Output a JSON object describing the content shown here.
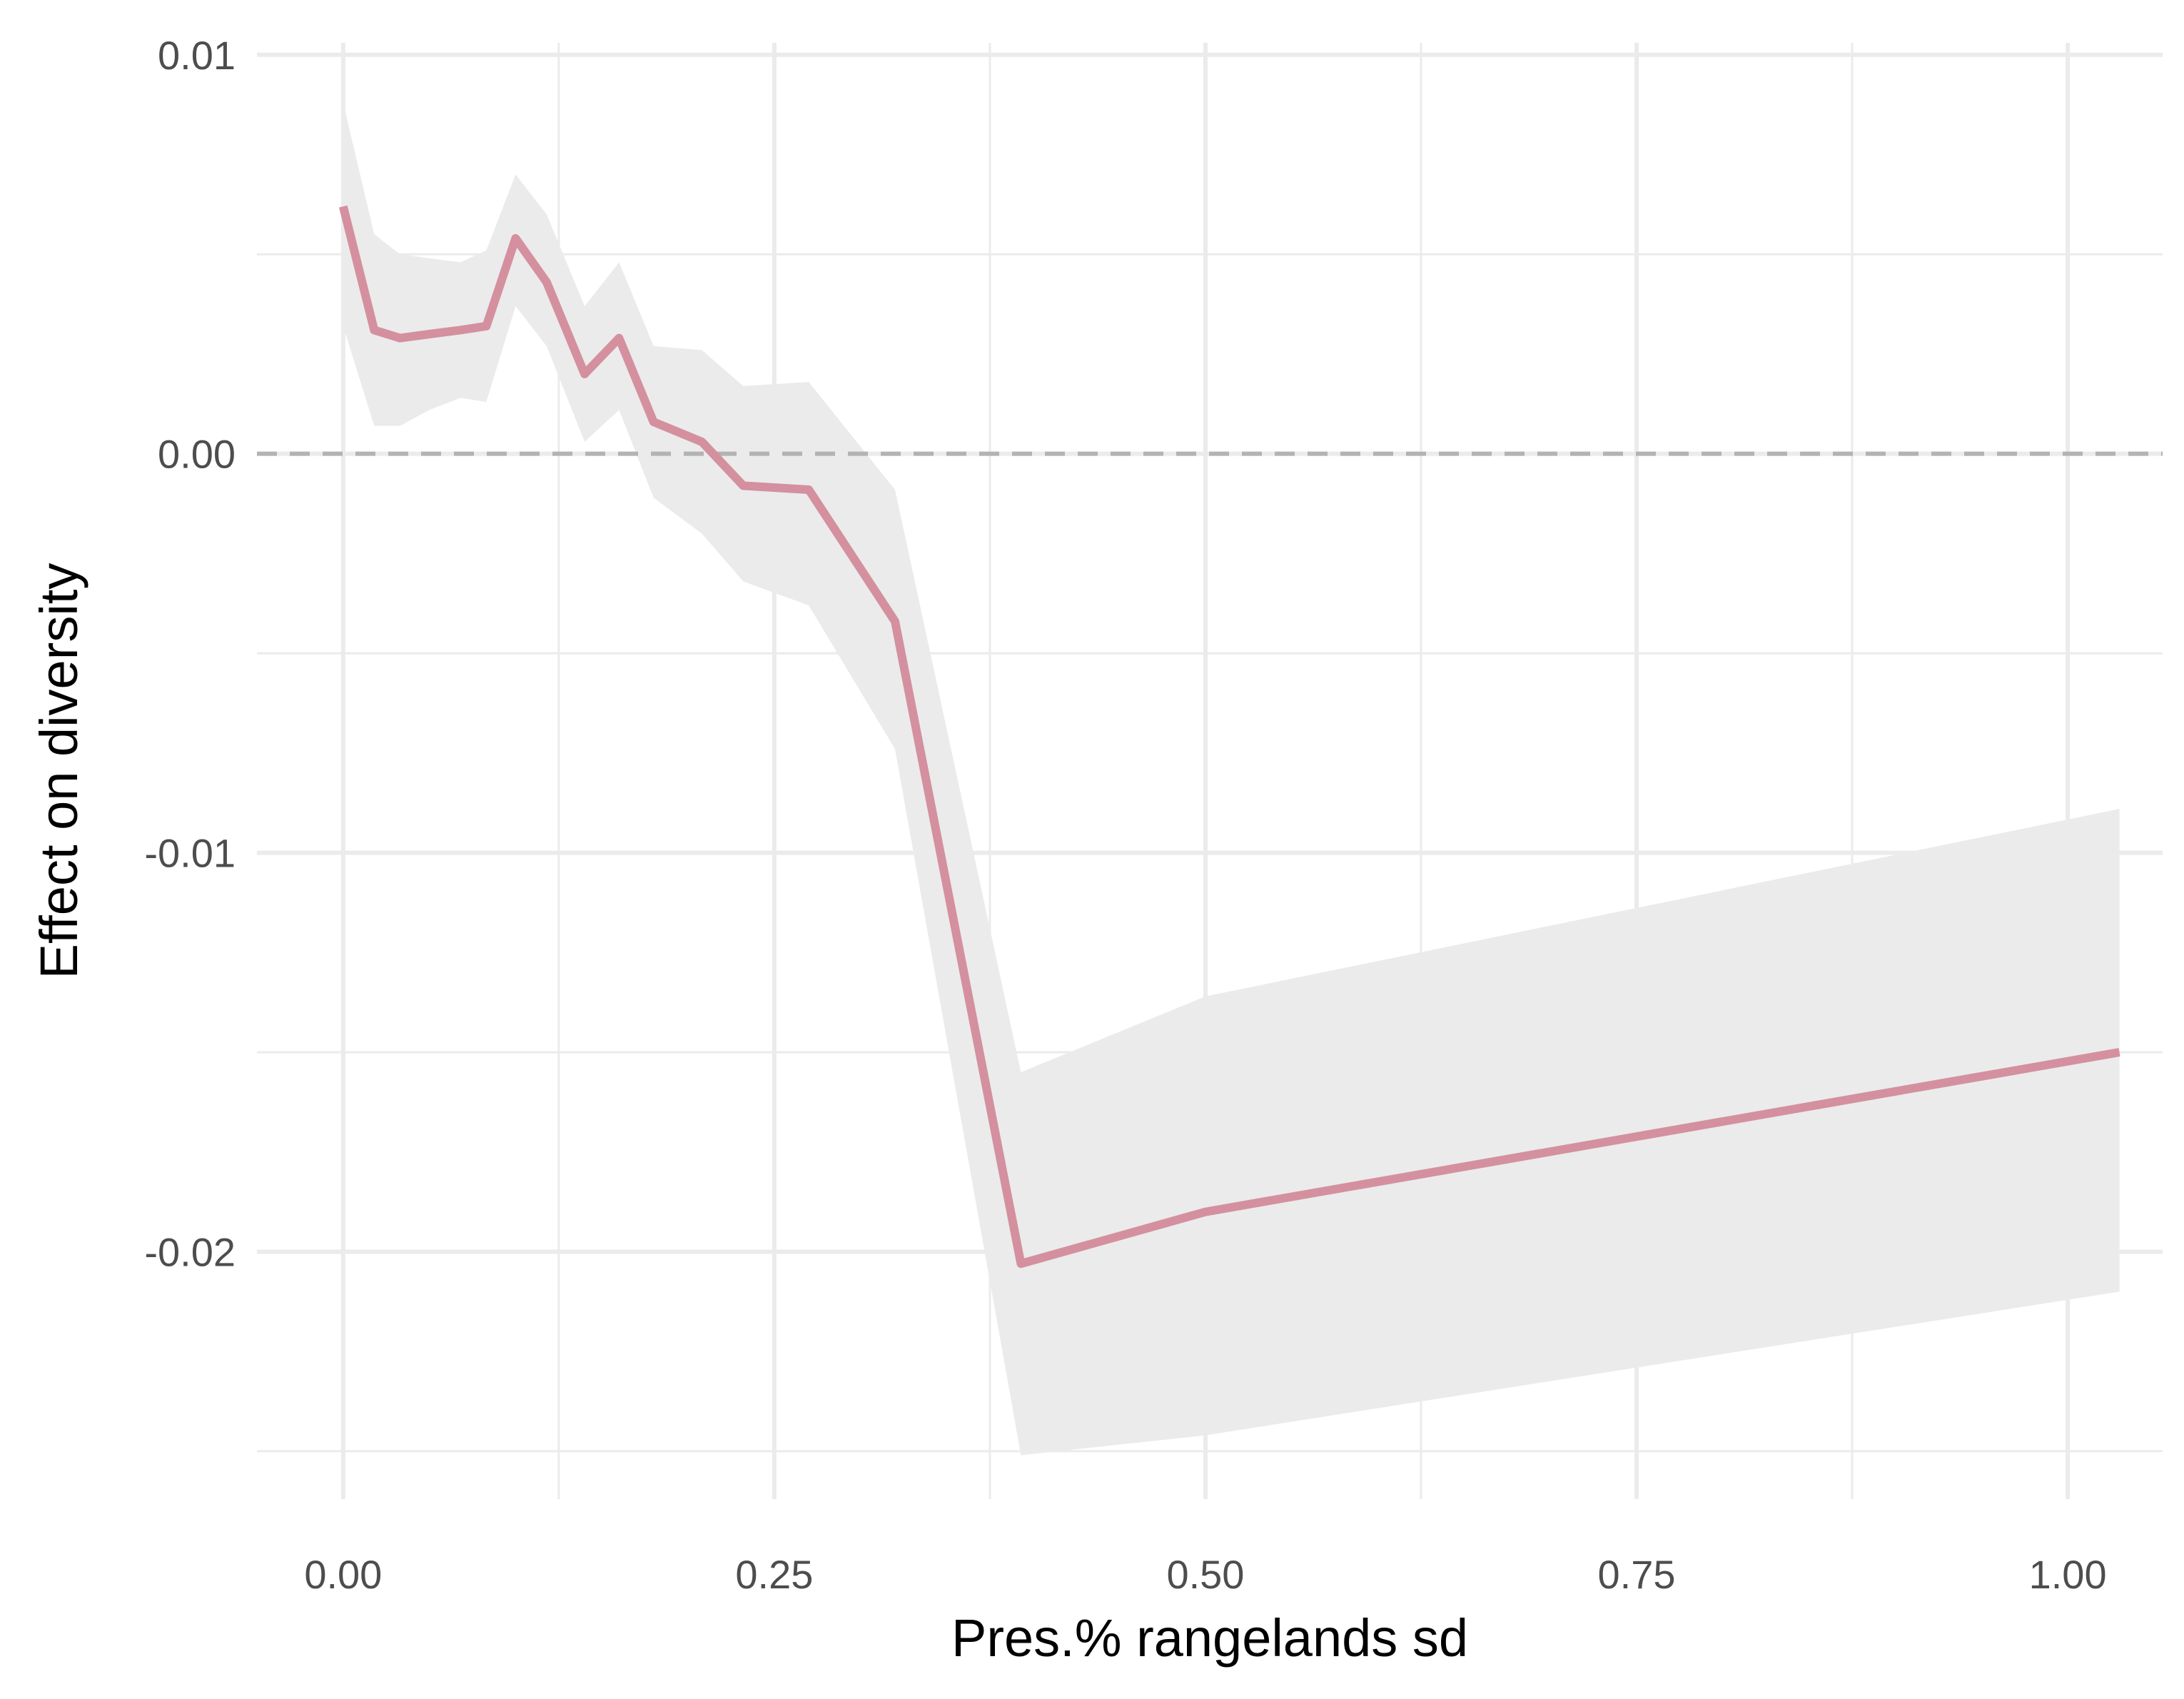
{
  "chart_data": {
    "type": "line",
    "title": "",
    "xlabel": "Pres.% rangelands sd",
    "ylabel": "Effect on diversity",
    "xlim": [
      -0.05,
      1.055
    ],
    "ylim": [
      -0.0262,
      0.0103
    ],
    "grid": true,
    "reference_line": {
      "y": 0,
      "style": "dashed",
      "color": "#b3b3b3"
    },
    "x_ticks": [
      0,
      0.25,
      0.5,
      0.75,
      1.0
    ],
    "x_tick_labels": [
      "0.00",
      "0.25",
      "0.50",
      "0.75",
      "1.00"
    ],
    "y_ticks": [
      0.01,
      0,
      -0.01,
      -0.02
    ],
    "y_tick_labels": [
      "0.01",
      "0.00",
      "-0.01",
      "-0.02"
    ],
    "series": [
      {
        "color": "#d4909f",
        "x": [
          0.0,
          0.018,
          0.033,
          0.05,
          0.068,
          0.083,
          0.1,
          0.118,
          0.14,
          0.16,
          0.18,
          0.208,
          0.232,
          0.27,
          0.32,
          0.393,
          0.5,
          1.03
        ],
        "y": [
          0.0062,
          0.0031,
          0.0029,
          0.003,
          0.0031,
          0.0032,
          0.0054,
          0.0043,
          0.002,
          0.0029,
          0.0008,
          0.0003,
          -0.0008,
          -0.0009,
          -0.0042,
          -0.0203,
          -0.019,
          -0.015
        ],
        "lower": [
          0.0032,
          0.0007,
          0.0007,
          0.0011,
          0.0014,
          0.0013,
          0.0037,
          0.0027,
          0.0003,
          0.0011,
          -0.0011,
          -0.002,
          -0.0032,
          -0.0038,
          -0.0074,
          -0.0251,
          -0.0246,
          -0.021
        ],
        "upper": [
          0.0088,
          0.0055,
          0.005,
          0.0049,
          0.0048,
          0.0051,
          0.007,
          0.006,
          0.0037,
          0.0048,
          0.0027,
          0.0026,
          0.0017,
          0.0018,
          -0.0009,
          -0.0155,
          -0.0136,
          -0.0089
        ]
      }
    ],
    "ribbon_color": "#ebebeb"
  }
}
